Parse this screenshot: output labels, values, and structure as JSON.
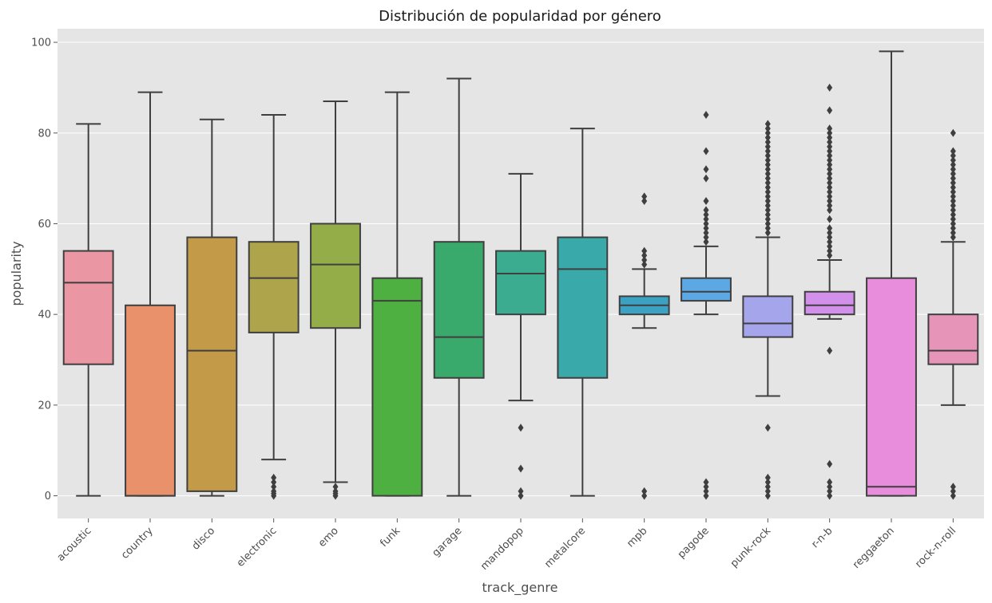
{
  "chart_data": {
    "type": "box",
    "title": "Distribución de popularidad por género",
    "xlabel": "track_genre",
    "ylabel": "popularity",
    "ylim": [
      -5,
      103
    ],
    "yticks": [
      0,
      20,
      40,
      60,
      80,
      100
    ],
    "grid": true,
    "background": "#e5e5e5",
    "categories": [
      "acoustic",
      "country",
      "disco",
      "electronic",
      "emo",
      "funk",
      "garage",
      "mandopop",
      "metalcore",
      "mpb",
      "pagode",
      "punk-rock",
      "r-n-b",
      "reggaeton",
      "rock-n-roll"
    ],
    "colors": [
      "#ea96a3",
      "#e8916b",
      "#c39a47",
      "#ada44b",
      "#95ad48",
      "#4fb042",
      "#3aa96c",
      "#3cac91",
      "#3aa9a9",
      "#3ba2c4",
      "#5ca8e5",
      "#a4a5ea",
      "#d390ea",
      "#e88ddb",
      "#e695b8"
    ],
    "boxes": [
      {
        "name": "acoustic",
        "whislo": 0,
        "q1": 29,
        "med": 47,
        "q3": 54,
        "whishi": 82,
        "fliers": []
      },
      {
        "name": "country",
        "whislo": 0,
        "q1": 0,
        "med": 0,
        "q3": 42,
        "whishi": 89,
        "fliers": []
      },
      {
        "name": "disco",
        "whislo": 0,
        "q1": 1,
        "med": 32,
        "q3": 57,
        "whishi": 83,
        "fliers": []
      },
      {
        "name": "electronic",
        "whislo": 8,
        "q1": 36,
        "med": 48,
        "q3": 56,
        "whishi": 84,
        "fliers": [
          0,
          0.5,
          1,
          2,
          3,
          4
        ]
      },
      {
        "name": "emo",
        "whislo": 3,
        "q1": 37,
        "med": 51,
        "q3": 60,
        "whishi": 87,
        "fliers": [
          0,
          0.5,
          1,
          2
        ]
      },
      {
        "name": "funk",
        "whislo": 0,
        "q1": 0,
        "med": 43,
        "q3": 48,
        "whishi": 89,
        "fliers": []
      },
      {
        "name": "garage",
        "whislo": 0,
        "q1": 26,
        "med": 35,
        "q3": 56,
        "whishi": 92,
        "fliers": []
      },
      {
        "name": "mandopop",
        "whislo": 21,
        "q1": 40,
        "med": 49,
        "q3": 54,
        "whishi": 71,
        "fliers": [
          15,
          6,
          1,
          0
        ]
      },
      {
        "name": "metalcore",
        "whislo": 0,
        "q1": 26,
        "med": 50,
        "q3": 57,
        "whishi": 81,
        "fliers": []
      },
      {
        "name": "mpb",
        "whislo": 37,
        "q1": 40,
        "med": 42,
        "q3": 44,
        "whishi": 50,
        "fliers": [
          51,
          52,
          53,
          54,
          65,
          66,
          1,
          0
        ]
      },
      {
        "name": "pagode",
        "whislo": 40,
        "q1": 43,
        "med": 45,
        "q3": 48,
        "whishi": 55,
        "fliers": [
          56,
          57,
          58,
          59,
          60,
          61,
          62,
          63,
          65,
          70,
          72,
          76,
          84,
          3,
          2,
          1,
          0
        ]
      },
      {
        "name": "punk-rock",
        "whislo": 22,
        "q1": 35,
        "med": 38,
        "q3": 44,
        "whishi": 57,
        "fliers": [
          58,
          59,
          60,
          61,
          62,
          63,
          64,
          65,
          66,
          67,
          68,
          69,
          70,
          71,
          72,
          73,
          74,
          75,
          76,
          77,
          78,
          79,
          80,
          81,
          82,
          15,
          4,
          3,
          2,
          1,
          0
        ]
      },
      {
        "name": "r-n-b",
        "whislo": 39,
        "q1": 40,
        "med": 42,
        "q3": 45,
        "whishi": 52,
        "fliers": [
          53,
          54,
          55,
          56,
          57,
          58,
          59,
          61,
          63,
          64,
          65,
          66,
          67,
          68,
          69,
          70,
          71,
          72,
          73,
          74,
          75,
          76,
          77,
          78,
          79,
          80,
          81,
          85,
          90,
          32,
          7,
          3,
          2,
          1,
          0
        ]
      },
      {
        "name": "reggaeton",
        "whislo": 0,
        "q1": 0,
        "med": 2,
        "q3": 48,
        "whishi": 98,
        "fliers": []
      },
      {
        "name": "rock-n-roll",
        "whislo": 20,
        "q1": 29,
        "med": 32,
        "q3": 40,
        "whishi": 56,
        "fliers": [
          57,
          58,
          59,
          60,
          61,
          62,
          63,
          64,
          65,
          66,
          67,
          68,
          69,
          70,
          71,
          72,
          73,
          74,
          75,
          76,
          80,
          2,
          1,
          0
        ]
      }
    ]
  }
}
